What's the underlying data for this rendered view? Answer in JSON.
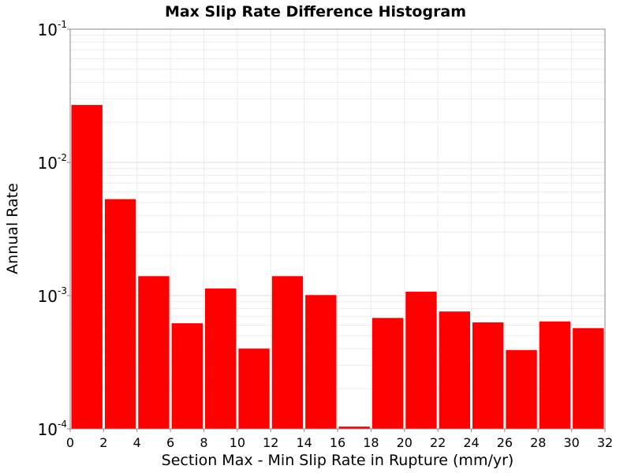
{
  "chart_data": {
    "type": "bar",
    "title": "Max Slip Rate Difference Histogram",
    "xlabel": "Section Max - Min Slip Rate in Rupture (mm/yr)",
    "ylabel": "Annual Rate",
    "y_scale": "log",
    "xlim": [
      0,
      32
    ],
    "ylim": [
      0.0001,
      0.1
    ],
    "grid": true,
    "bar_color": "#ff0000",
    "bin_width": 2,
    "x": [
      1,
      3,
      5,
      7,
      9,
      11,
      13,
      15,
      17,
      19,
      21,
      23,
      25,
      27,
      29,
      31
    ],
    "values": [
      0.027,
      0.0053,
      0.0014,
      0.00062,
      0.00113,
      0.0004,
      0.0014,
      0.00101,
      0.000104,
      0.00068,
      0.00107,
      0.00076,
      0.00063,
      0.00039,
      0.00064,
      0.00057
    ],
    "x_tick_labels": [
      "0",
      "2",
      "4",
      "6",
      "8",
      "10",
      "12",
      "14",
      "16",
      "18",
      "20",
      "22",
      "24",
      "26",
      "28",
      "30",
      "32"
    ],
    "y_ticks": [
      {
        "base": "10",
        "exp": "-4"
      },
      {
        "base": "10",
        "exp": "-3"
      },
      {
        "base": "10",
        "exp": "-2"
      },
      {
        "base": "10",
        "exp": "-1"
      }
    ]
  }
}
